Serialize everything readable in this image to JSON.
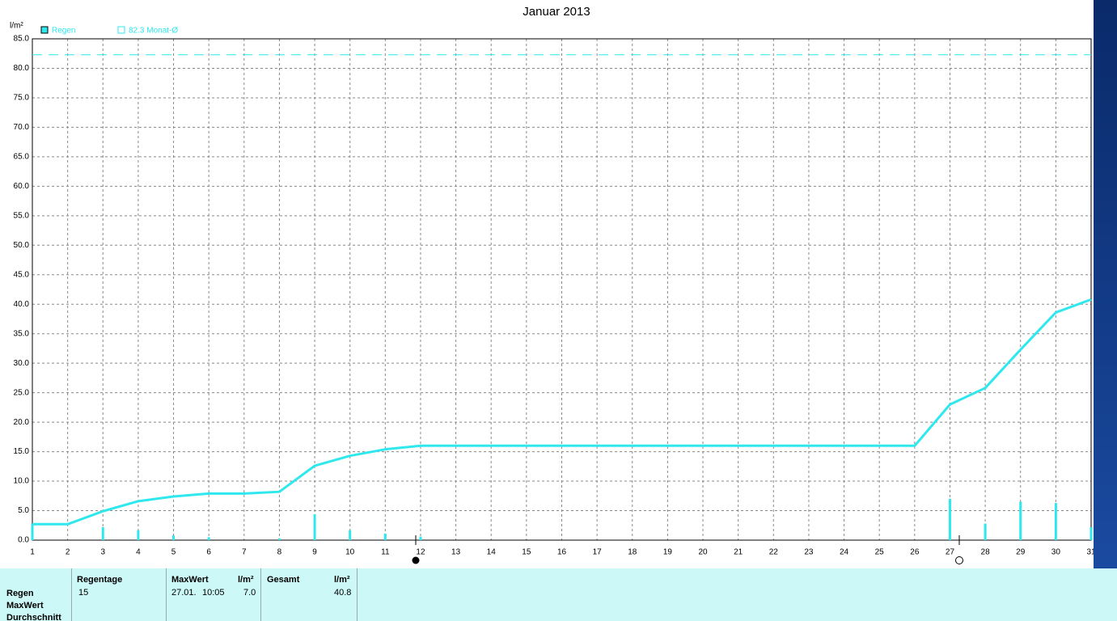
{
  "chart_data": {
    "type": "line",
    "title": "Januar 2013",
    "y_label": "l/m²",
    "series": [
      {
        "name": "Regen",
        "color": "#2ee8ee",
        "x": [
          1,
          2,
          3,
          4,
          5,
          6,
          7,
          8,
          9,
          10,
          11,
          12,
          13,
          14,
          15,
          16,
          17,
          18,
          19,
          20,
          21,
          22,
          23,
          24,
          25,
          26,
          27,
          28,
          29,
          30,
          31
        ],
        "values": [
          2.7,
          null,
          2.2,
          1.7,
          0.8,
          0.5,
          null,
          0.3,
          4.4,
          1.7,
          1.1,
          0.6,
          null,
          null,
          null,
          null,
          null,
          null,
          null,
          null,
          null,
          null,
          null,
          null,
          null,
          null,
          7.0,
          2.8,
          6.5,
          6.3,
          2.2
        ],
        "cumulative": [
          2.7,
          2.7,
          4.9,
          6.6,
          7.4,
          7.9,
          7.9,
          8.2,
          12.6,
          14.3,
          15.4,
          16.0,
          16.0,
          16.0,
          16.0,
          16.0,
          16.0,
          16.0,
          16.0,
          16.0,
          16.0,
          16.0,
          16.0,
          16.0,
          16.0,
          16.0,
          23.0,
          25.8,
          32.3,
          38.6,
          40.8
        ]
      }
    ],
    "reference": {
      "value": 82.3,
      "label": "82.3 Monat-Ø"
    },
    "xlim": [
      1,
      31
    ],
    "xticks": [
      1,
      2,
      3,
      4,
      5,
      6,
      7,
      8,
      9,
      10,
      11,
      12,
      13,
      14,
      15,
      16,
      17,
      18,
      19,
      20,
      21,
      22,
      23,
      24,
      25,
      26,
      27,
      28,
      29,
      30,
      31
    ],
    "ylim": [
      0,
      85
    ],
    "yticks": [
      {
        "value": 0,
        "label": "0.0"
      },
      {
        "value": 5,
        "label": "5.0"
      },
      {
        "value": 10,
        "label": "10.0"
      },
      {
        "value": 15,
        "label": "15.0"
      },
      {
        "value": 20,
        "label": "20.0"
      },
      {
        "value": 25,
        "label": "25.0"
      },
      {
        "value": 30,
        "label": "30.0"
      },
      {
        "value": 35,
        "label": "35.0"
      },
      {
        "value": 40,
        "label": "40.0"
      },
      {
        "value": 45,
        "label": "45.0"
      },
      {
        "value": 50,
        "label": "50.0"
      },
      {
        "value": 55,
        "label": "55.0"
      },
      {
        "value": 60,
        "label": "60.0"
      },
      {
        "value": 65,
        "label": "65.0"
      },
      {
        "value": 70,
        "label": "70.0"
      },
      {
        "value": 75,
        "label": "75.0"
      },
      {
        "value": 80,
        "label": "80.0"
      },
      {
        "value": 85,
        "label": "85.0"
      }
    ],
    "grid": true
  },
  "summary": {
    "columns": [
      "Regentage",
      "MaxWert",
      "l/m²",
      "Gesamt",
      "l/m²"
    ],
    "rows": [
      "Regen",
      "MaxWert",
      "Durchschnitt"
    ],
    "values": [
      "15",
      "27.01.",
      "10:05",
      "7.0",
      "40.8"
    ]
  }
}
